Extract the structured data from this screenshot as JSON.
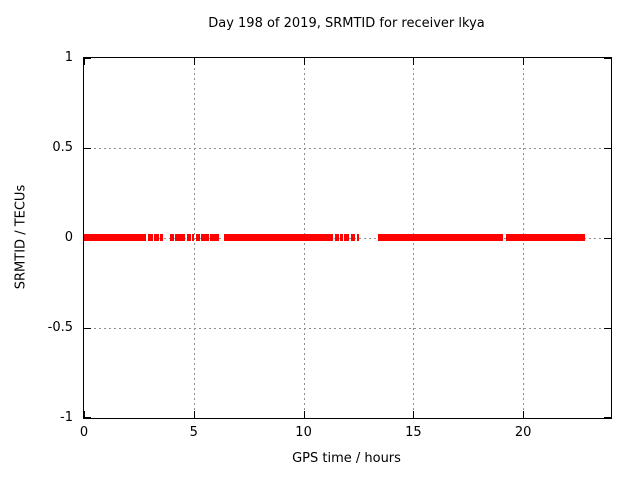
{
  "title": "Day 198 of 2019, SRMTID for receiver lkya",
  "colors": {
    "data_series": "#ff0000",
    "grid": "#8f8f8f",
    "axis": "#000000",
    "text": "#000000",
    "background": "#ffffff"
  },
  "chart_data": {
    "type": "line",
    "title": "Day 198 of 2019, SRMTID for receiver lkya",
    "xlabel": "GPS time / hours",
    "ylabel": "SRMTID / TECUs",
    "xlim": [
      0,
      24
    ],
    "ylim": [
      -1,
      1
    ],
    "grid": true,
    "legend": "none",
    "xticks": [
      {
        "value": 0,
        "label": "0"
      },
      {
        "value": 5,
        "label": "5"
      },
      {
        "value": 10,
        "label": "10"
      },
      {
        "value": 15,
        "label": "15"
      },
      {
        "value": 20,
        "label": "20"
      }
    ],
    "yticks": [
      {
        "value": -1,
        "label": "-1"
      },
      {
        "value": -0.5,
        "label": "-0.5"
      },
      {
        "value": 0,
        "label": "0"
      },
      {
        "value": 0.5,
        "label": "0.5"
      },
      {
        "value": 1,
        "label": "1"
      }
    ],
    "series": [
      {
        "name": "SRMTID",
        "color": "#ff0000",
        "y_value": 0,
        "note": "flat line at SRMTID = 0 TECUs, drawn as thick segments with data gaps; x in GPS hours",
        "segments_hours": [
          [
            0.0,
            2.83
          ],
          [
            2.92,
            3.15
          ],
          [
            3.2,
            3.42
          ],
          [
            3.47,
            3.6
          ],
          [
            3.91,
            4.09
          ],
          [
            4.14,
            4.59
          ],
          [
            4.71,
            4.86
          ],
          [
            4.91,
            5.0
          ],
          [
            5.09,
            5.27
          ],
          [
            5.32,
            5.49
          ],
          [
            5.53,
            5.71
          ],
          [
            5.76,
            6.17
          ],
          [
            6.36,
            11.36
          ],
          [
            11.45,
            11.61
          ],
          [
            11.68,
            11.8
          ],
          [
            11.86,
            11.93
          ],
          [
            11.95,
            12.07
          ],
          [
            12.14,
            12.2
          ],
          [
            12.23,
            12.36
          ],
          [
            12.41,
            12.52
          ],
          [
            13.41,
            19.09
          ],
          [
            19.23,
            22.82
          ]
        ]
      }
    ]
  }
}
